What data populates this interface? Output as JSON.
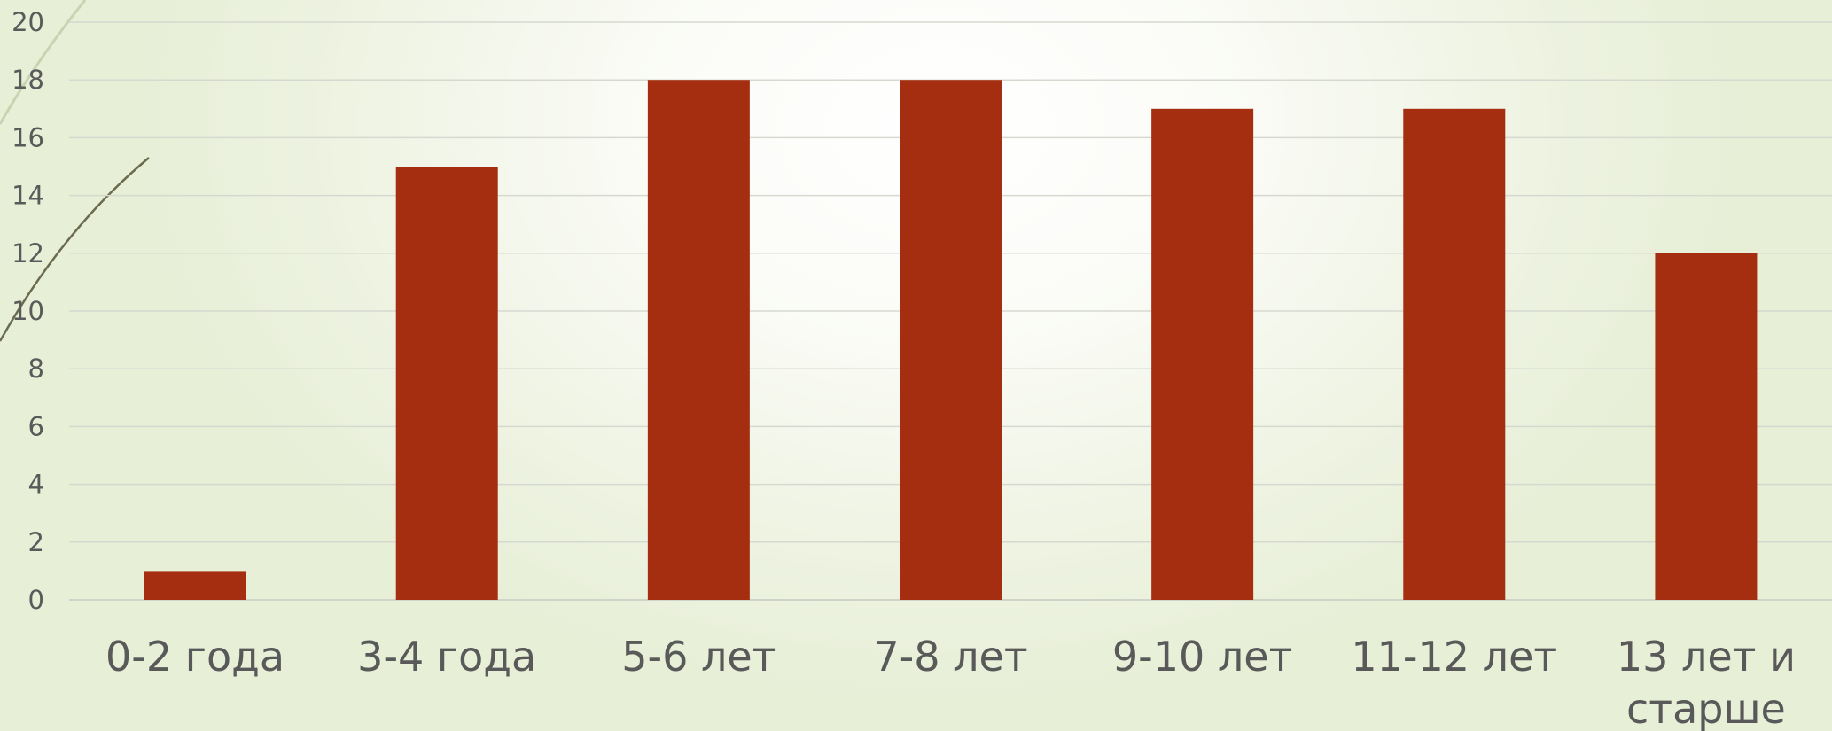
{
  "chart_data": {
    "type": "bar",
    "categories": [
      "0-2 года",
      "3-4 года",
      "5-6 лет",
      "7-8 лет",
      "9-10 лет",
      "11-12 лет",
      [
        "13 лет и",
        "старше"
      ]
    ],
    "values": [
      1,
      15,
      18,
      18,
      17,
      17,
      12
    ],
    "ylim": [
      0,
      20
    ],
    "yticks": [
      0,
      2,
      4,
      6,
      8,
      10,
      12,
      14,
      16,
      18,
      20
    ],
    "grid": true,
    "legend": "none",
    "colors": {
      "bar": "#a52d10",
      "decor_line": "#6b6b4e"
    }
  }
}
